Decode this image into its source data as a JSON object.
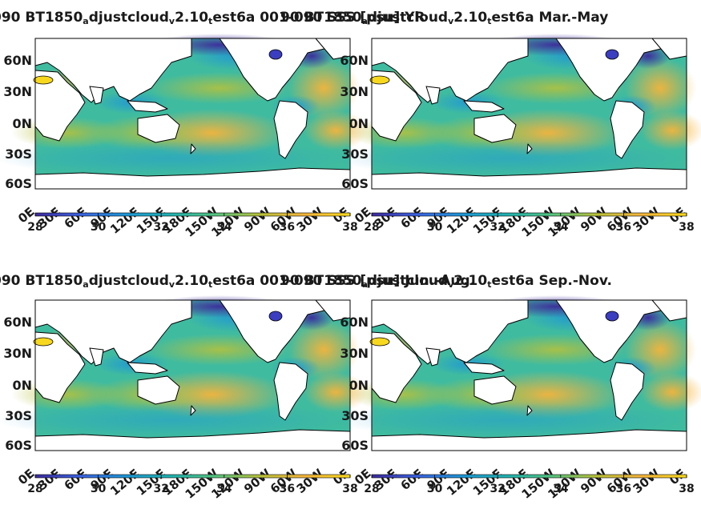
{
  "colormap": [
    "#3d2a9b",
    "#3b62e0",
    "#1e96d6",
    "#20b2b0",
    "#55c37f",
    "#b8c13a",
    "#f4b43c",
    "#f7d81f"
  ],
  "colorbar": {
    "ticks": [
      "28",
      "30",
      "32",
      "34",
      "36",
      "38"
    ],
    "range": [
      28,
      38
    ]
  },
  "axes": {
    "lat_labels": [
      "60N",
      "30N",
      "0N",
      "30S",
      "60S"
    ],
    "lon_labels": [
      "0E",
      "30E",
      "60E",
      "90E",
      "120E",
      "150E",
      "180E",
      "150W",
      "120W",
      "90W",
      "60W",
      "30W",
      "0E"
    ]
  },
  "panels": [
    {
      "title_parts": [
        {
          "t": "090 BT1850"
        },
        {
          "t": "a",
          "sub": true
        },
        {
          "t": "djustcloud"
        },
        {
          "t": "v",
          "sub": true
        },
        {
          "t": "2.10"
        },
        {
          "t": "t",
          "sub": true
        },
        {
          "t": "est6a 001-090 SSS [psu] YR"
        }
      ]
    },
    {
      "title_parts": [
        {
          "t": "90 BT1850"
        },
        {
          "t": "a",
          "sub": true
        },
        {
          "t": "djustcloud"
        },
        {
          "t": "v",
          "sub": true
        },
        {
          "t": "2.10"
        },
        {
          "t": "t",
          "sub": true
        },
        {
          "t": "est6a Mar.-May"
        }
      ]
    },
    {
      "title_parts": [
        {
          "t": "090 BT1850"
        },
        {
          "t": "a",
          "sub": true
        },
        {
          "t": "djustcloud"
        },
        {
          "t": "v",
          "sub": true
        },
        {
          "t": "2.10"
        },
        {
          "t": "t",
          "sub": true
        },
        {
          "t": "est6a 001-090 SSS [psu] Jun.-Aug."
        }
      ]
    },
    {
      "title_parts": [
        {
          "t": "90 BT1850"
        },
        {
          "t": "a",
          "sub": true
        },
        {
          "t": "djustcloud"
        },
        {
          "t": "v",
          "sub": true
        },
        {
          "t": "2.10"
        },
        {
          "t": "t",
          "sub": true
        },
        {
          "t": "est6a Sep.-Nov."
        }
      ]
    }
  ]
}
